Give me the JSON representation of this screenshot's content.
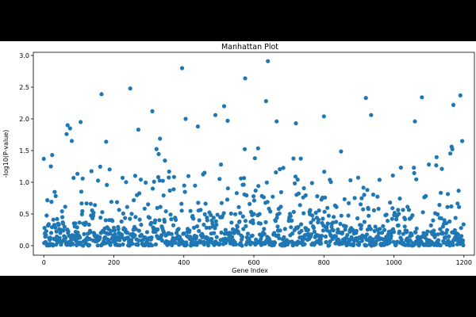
{
  "chart_data": {
    "type": "scatter",
    "title": "Manhattan Plot",
    "xlabel": "Gene Index",
    "ylabel": "-log10(P-value)",
    "xlim": [
      -30,
      1230
    ],
    "ylim": [
      -0.15,
      3.05
    ],
    "xticks": [
      0,
      200,
      400,
      600,
      800,
      1000,
      1200
    ],
    "yticks": [
      0.0,
      0.5,
      1.0,
      1.5,
      2.0,
      2.5,
      3.0
    ],
    "xtick_labels": [
      "0",
      "200",
      "400",
      "600",
      "800",
      "1000",
      "1200"
    ],
    "ytick_labels": [
      "0.0",
      "0.5",
      "1.0",
      "1.5",
      "2.0",
      "2.5",
      "3.0"
    ],
    "grid": false,
    "point_color": "#1f77b4",
    "n_points": 1200,
    "x": "gene index 0-1199 (one point per gene)",
    "notable_points": [
      {
        "x": 0,
        "y": 1.37
      },
      {
        "x": 20,
        "y": 1.25
      },
      {
        "x": 24,
        "y": 1.43
      },
      {
        "x": 65,
        "y": 1.76
      },
      {
        "x": 68,
        "y": 1.9
      },
      {
        "x": 75,
        "y": 1.85
      },
      {
        "x": 105,
        "y": 1.95
      },
      {
        "x": 165,
        "y": 2.39
      },
      {
        "x": 178,
        "y": 1.64
      },
      {
        "x": 247,
        "y": 2.48
      },
      {
        "x": 270,
        "y": 1.83
      },
      {
        "x": 310,
        "y": 2.12
      },
      {
        "x": 395,
        "y": 2.8
      },
      {
        "x": 405,
        "y": 2.0
      },
      {
        "x": 440,
        "y": 1.88
      },
      {
        "x": 490,
        "y": 2.06
      },
      {
        "x": 515,
        "y": 2.2
      },
      {
        "x": 525,
        "y": 1.97
      },
      {
        "x": 575,
        "y": 2.64
      },
      {
        "x": 640,
        "y": 2.91
      },
      {
        "x": 635,
        "y": 2.28
      },
      {
        "x": 665,
        "y": 1.96
      },
      {
        "x": 720,
        "y": 1.93
      },
      {
        "x": 800,
        "y": 2.04
      },
      {
        "x": 920,
        "y": 2.33
      },
      {
        "x": 935,
        "y": 2.06
      },
      {
        "x": 1060,
        "y": 1.96
      },
      {
        "x": 1080,
        "y": 2.34
      },
      {
        "x": 1170,
        "y": 2.22
      },
      {
        "x": 1190,
        "y": 2.37
      },
      {
        "x": 1195,
        "y": 1.65
      }
    ]
  }
}
